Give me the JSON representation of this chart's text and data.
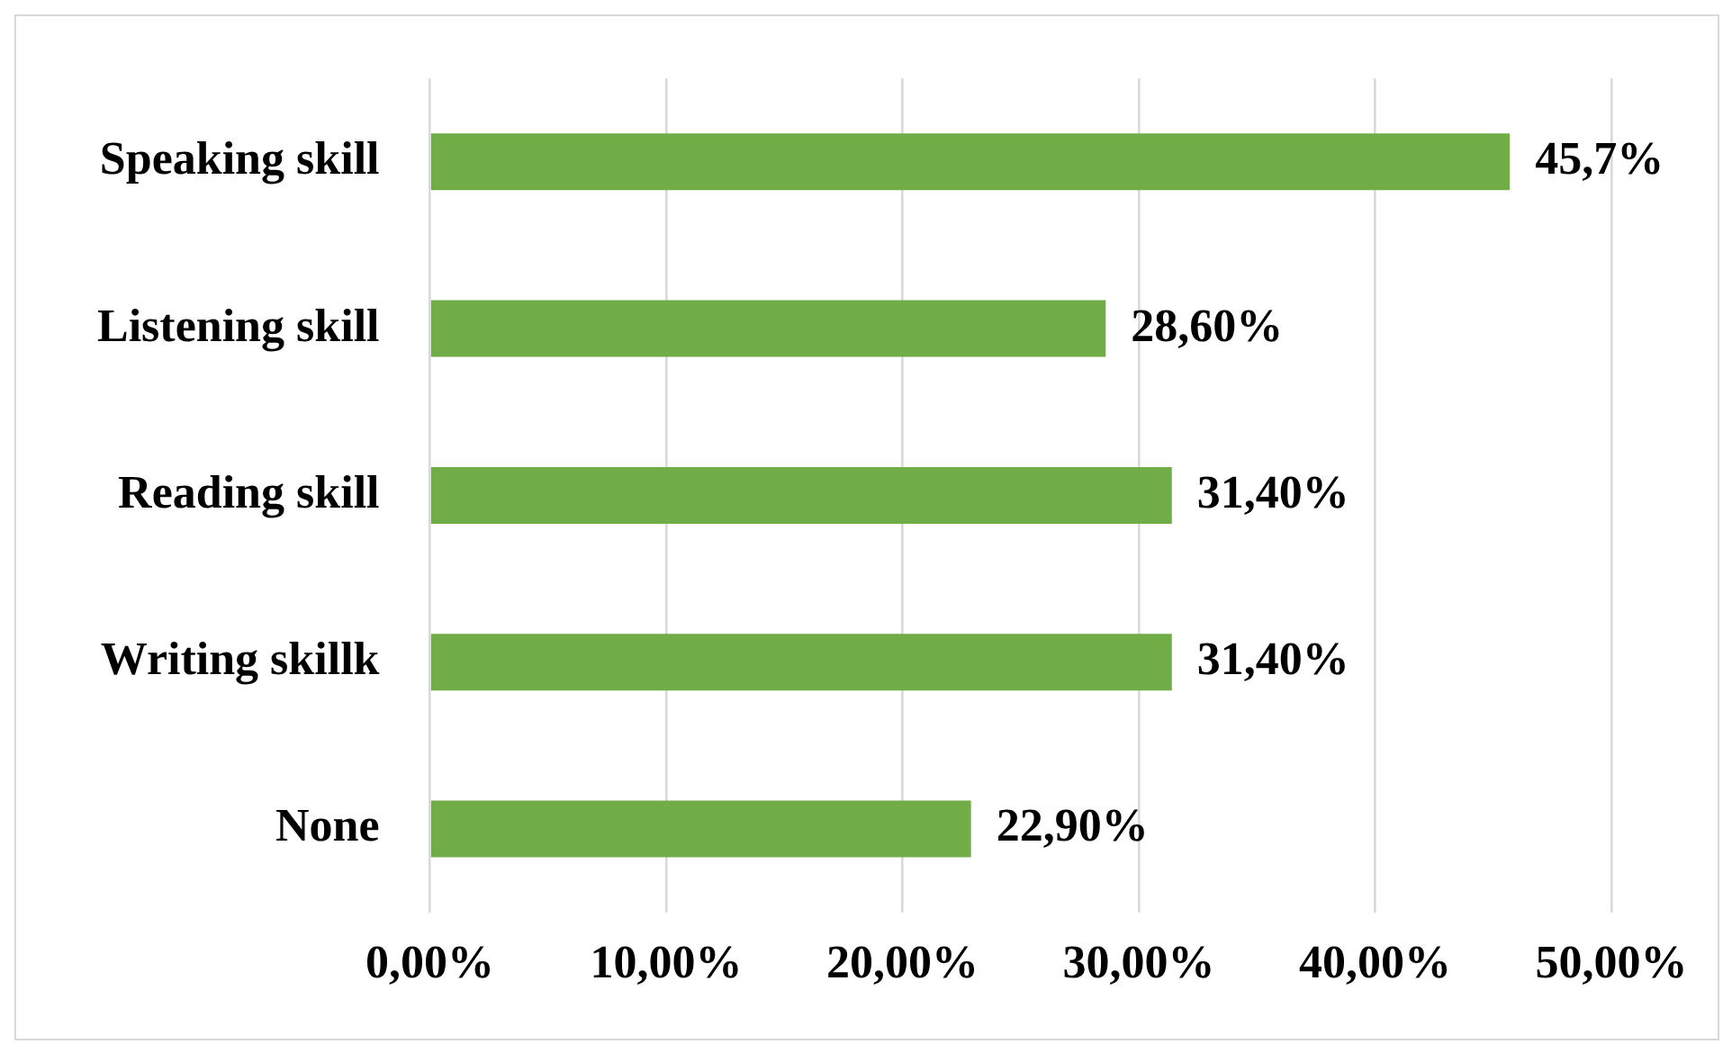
{
  "chart_data": {
    "type": "bar",
    "orientation": "horizontal",
    "categories": [
      "Speaking skill",
      "Listening skill",
      "Reading skill",
      "Writing skillk",
      "None"
    ],
    "values": [
      45.7,
      28.6,
      31.4,
      31.4,
      22.9
    ],
    "value_labels": [
      "45,7%",
      "28,60%",
      "31,40%",
      "31,40%",
      "22,90%"
    ],
    "color": "#70ad47",
    "xlim": [
      0,
      50
    ],
    "xticks": [
      {
        "value": 0,
        "label": "0,00%"
      },
      {
        "value": 10,
        "label": "10,00%"
      },
      {
        "value": 20,
        "label": "20,00%"
      },
      {
        "value": 30,
        "label": "30,00%"
      },
      {
        "value": 40,
        "label": "40,00%"
      },
      {
        "value": 50,
        "label": "50,00%"
      }
    ],
    "grid": "x"
  }
}
